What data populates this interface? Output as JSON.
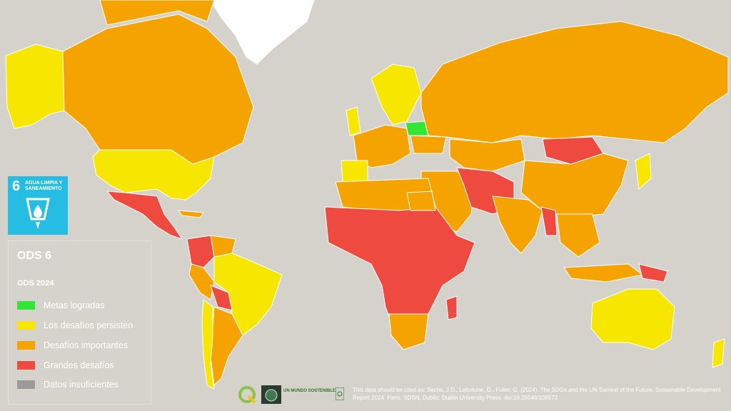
{
  "sdg_badge": {
    "number": "6",
    "title": "AGUA LIMPIA Y SANEAMIENTO",
    "color": "#26bde2",
    "icon": "water-drop-glass-icon"
  },
  "legend": {
    "title": "ODS 6",
    "subtitle": "ODS 2024",
    "items": [
      {
        "label": "Metas logradas",
        "color": "#33e633"
      },
      {
        "label": "Los desafíos persisten",
        "color": "#f7e700"
      },
      {
        "label": "Desafíos importantes",
        "color": "#f5a300"
      },
      {
        "label": "Grandes desafíos",
        "color": "#ef4a3f"
      },
      {
        "label": "Datos insuficientes",
        "color": "#9a9a9a"
      }
    ]
  },
  "colors": {
    "ocean": "#d5d2cb",
    "border": "#ffffff"
  },
  "logos": [
    {
      "name": "qgis-logo"
    },
    {
      "name": "globe-logo"
    },
    {
      "name": "un-mundo-sostenible-logo",
      "text": "UN MUNDO SOSTENIBLE"
    }
  ],
  "citation": "This data should be cited as: Sachs, J.D., Lafortune, G., Fuller, G. (2024). The SDGs and the UN Summit of the Future. Sustainable Development Report 2024. Paris: SDSN, Dublin: Dublin University Press. doi:10.25546/108572"
}
